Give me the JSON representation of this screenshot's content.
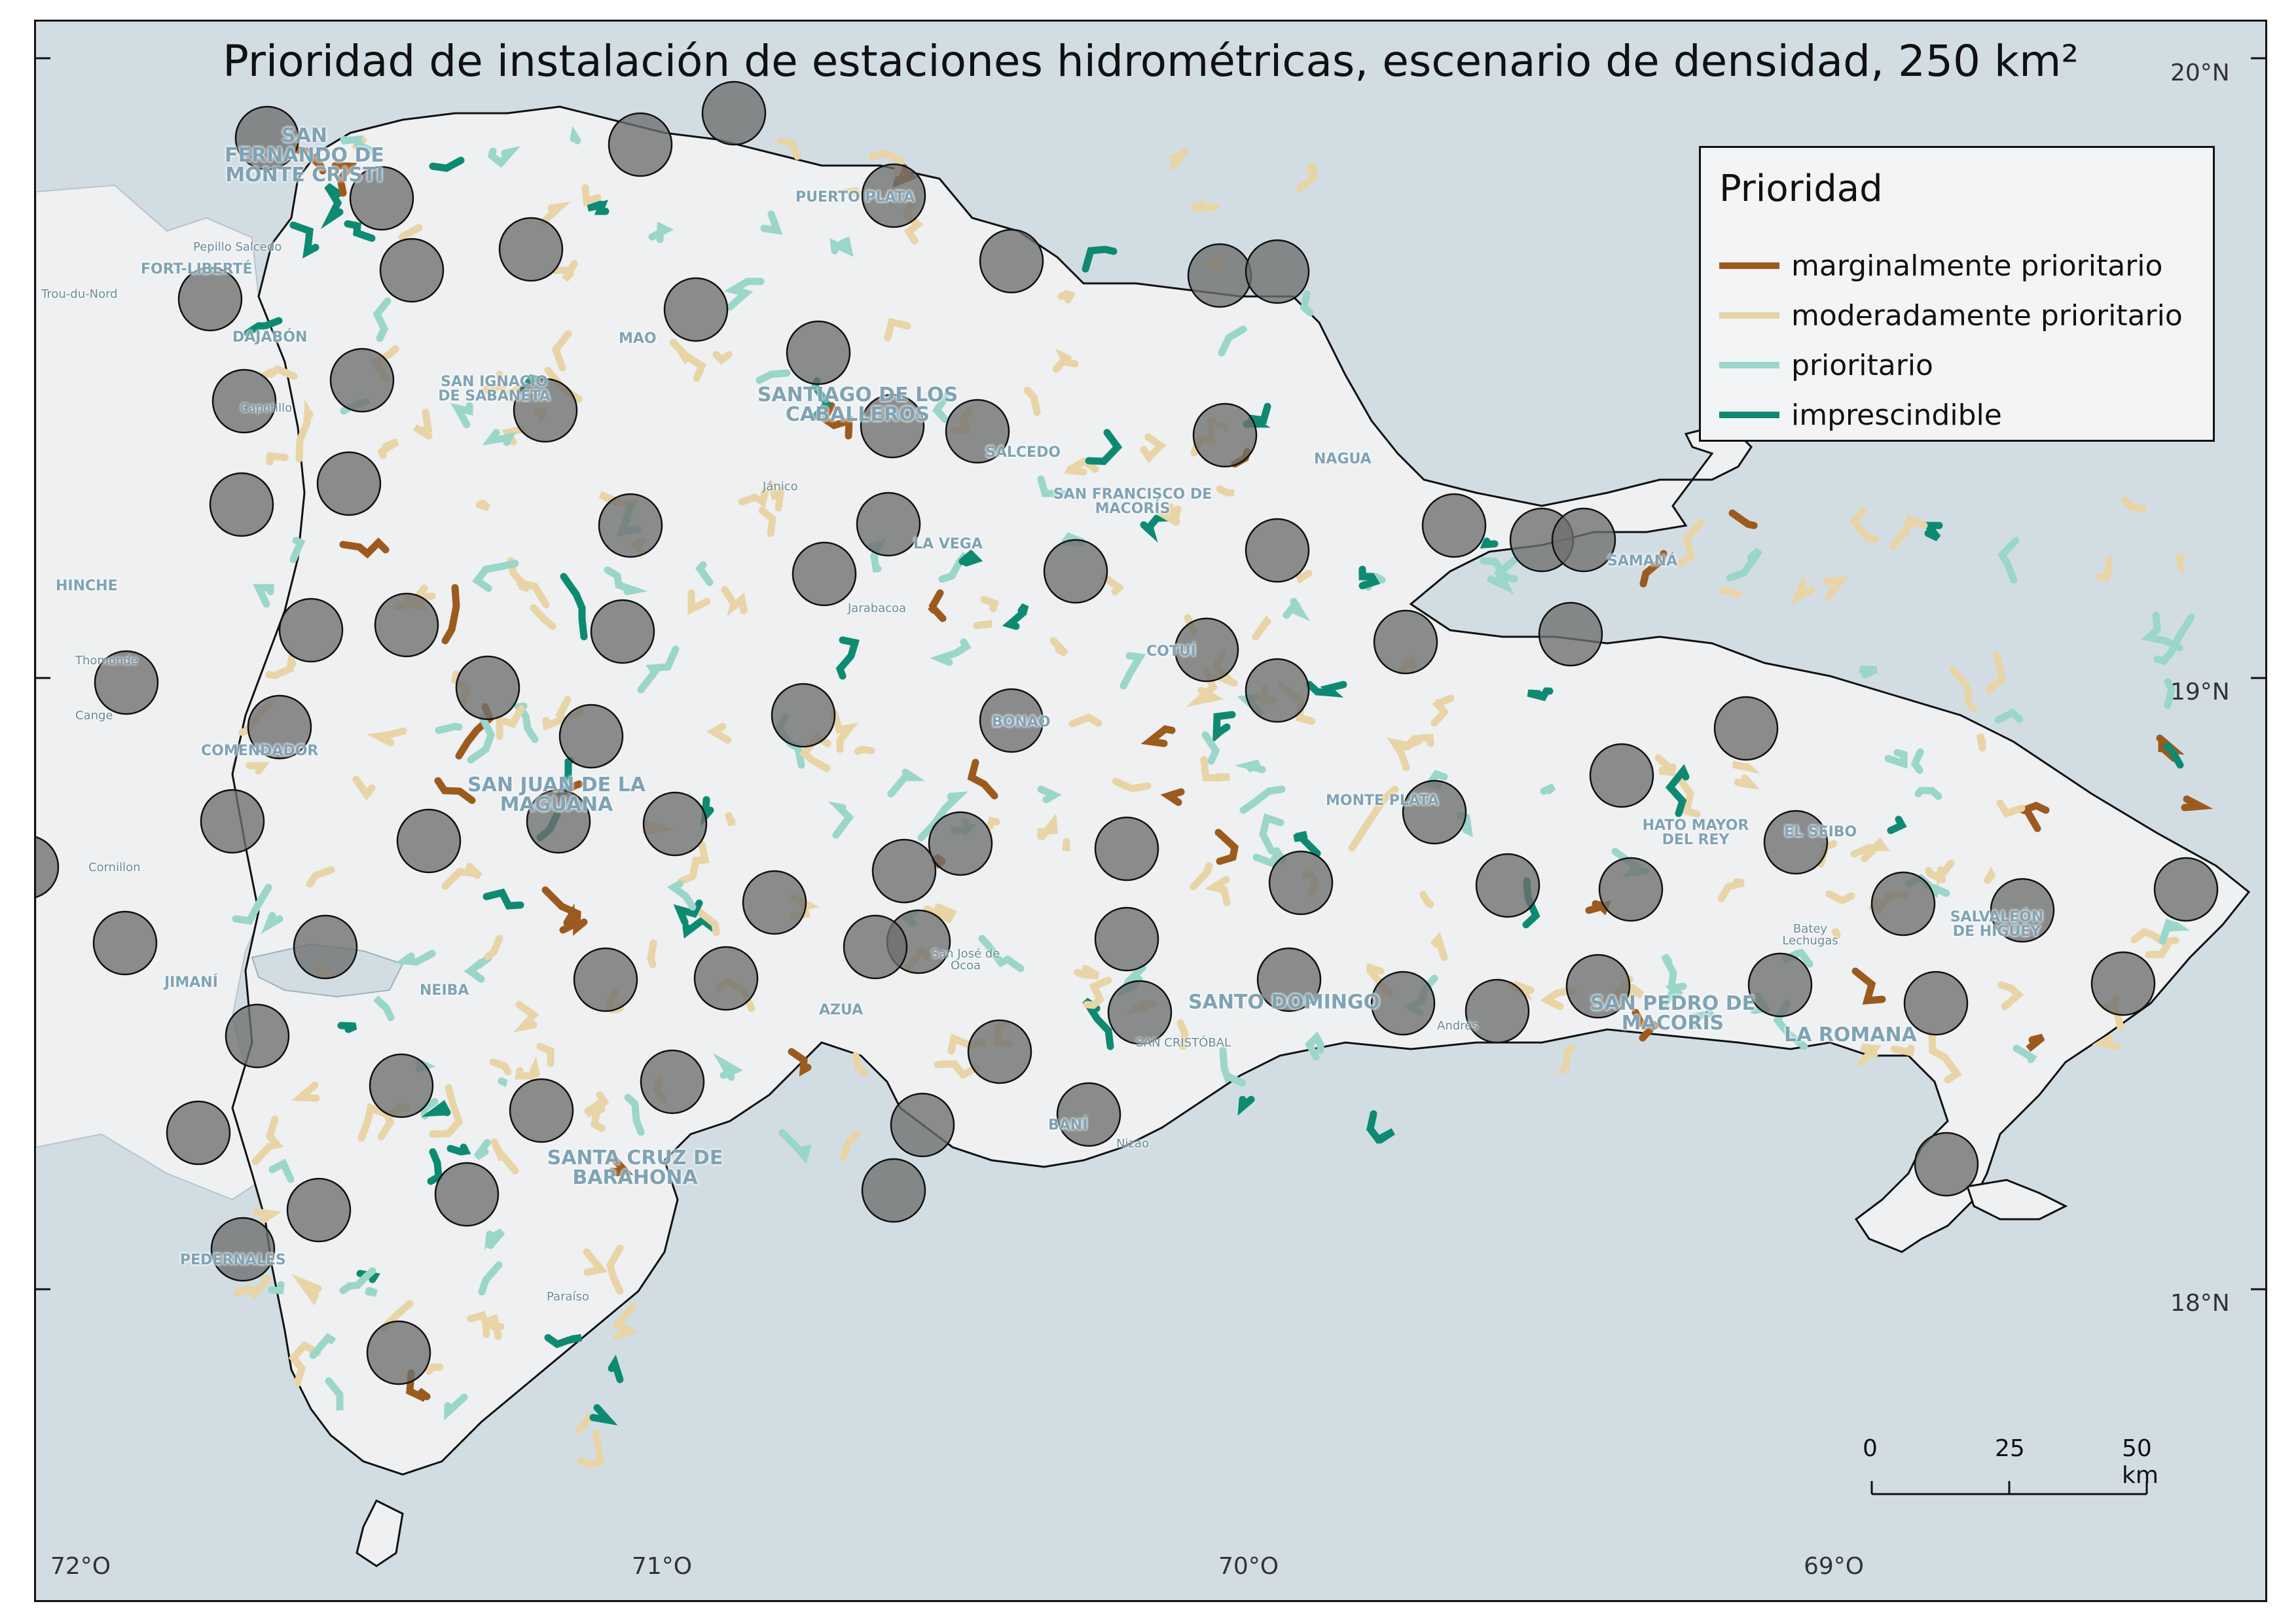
{
  "title": "Prioridad de instalación de estaciones hidrométricas, escenario de densidad, 250 km²",
  "colors": {
    "sea": "#d2dde3",
    "land": "#eef0f1",
    "station_fill": "#6e6e6e",
    "marginal": "#9c5a1e",
    "moderate": "#e8d4a6",
    "priority": "#9ad6c9",
    "essential": "#0e8a73"
  },
  "legend": {
    "title": "Prioridad",
    "items": [
      {
        "label": "marginalmente prioritario",
        "color": "#9c5a1e"
      },
      {
        "label": "moderadamente prioritario",
        "color": "#e8d4a6"
      },
      {
        "label": "prioritario",
        "color": "#9ad6c9"
      },
      {
        "label": "imprescindible",
        "color": "#0e8a73"
      }
    ]
  },
  "graticule": {
    "latitudes": [
      "20°N",
      "19°N",
      "18°N"
    ],
    "longitudes": [
      "72°O",
      "71°O",
      "70°O",
      "69°O"
    ]
  },
  "scale_bar": {
    "labels": [
      "0",
      "25",
      "50 km"
    ]
  },
  "places": [
    "SAN FERNANDO DE MONTE CRISTI",
    "PUERTO PLATA",
    "FORT-LIBERTÉ",
    "Trou-du-Nord",
    "DAJABÓN",
    "MAO",
    "SAN IGNACIO DE SABANETA",
    "SANTIAGO DE LOS CABALLEROS",
    "SALCEDO",
    "SAN FRANCISCO DE MACORÍS",
    "NAGUA",
    "SAMANÁ",
    "LA VEGA",
    "Jarabacoa",
    "Jánico",
    "HINCHE",
    "Thomonde",
    "Cange",
    "COMENDADOR",
    "SAN JUAN DE LA MAGUANA",
    "COTUÍ",
    "BONAO",
    "MONTE PLATA",
    "HATO MAYOR DEL REY",
    "EL SEIBO",
    "SALVALEÓN DE HIGÜEY",
    "Batey Lechugas",
    "SAN PEDRO DE MACORÍS",
    "LA ROMANA",
    "SANTO DOMINGO",
    "SAN CRISTÓBAL",
    "San José de Ocoa",
    "AZUA",
    "BANÍ",
    "Nizao",
    "NEIBA",
    "JIMANÍ",
    "SANTA CRUZ DE BARAHONA",
    "PEDERNALES",
    "Paraíso",
    "Capotillo",
    "Cornillon",
    "Andrés",
    "Pepillo Salcedo"
  ]
}
